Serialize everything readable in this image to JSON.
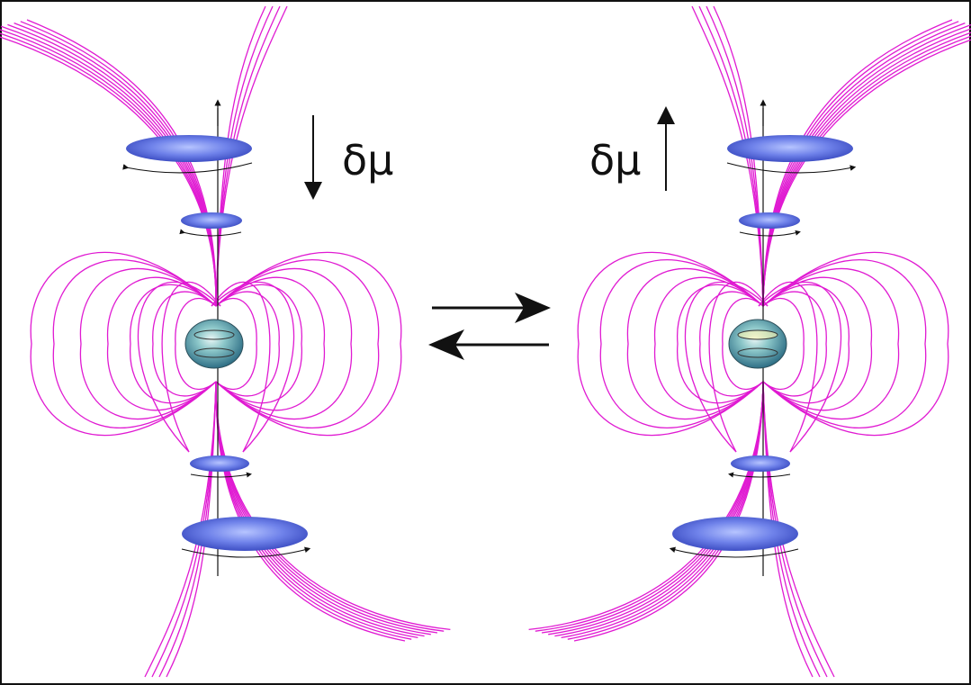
{
  "diagram": {
    "left_panel": {
      "delta_mu_label": "δμ",
      "arrow_direction": "down"
    },
    "right_panel": {
      "delta_mu_label": "δμ",
      "arrow_direction": "up"
    },
    "center_symbol": "equilibrium-arrows",
    "colors": {
      "field_lines": "#e01ad2",
      "disks": "#5a6fe0",
      "core": "#4a9bb0",
      "frame": "#111111",
      "axis": "#111111"
    }
  }
}
